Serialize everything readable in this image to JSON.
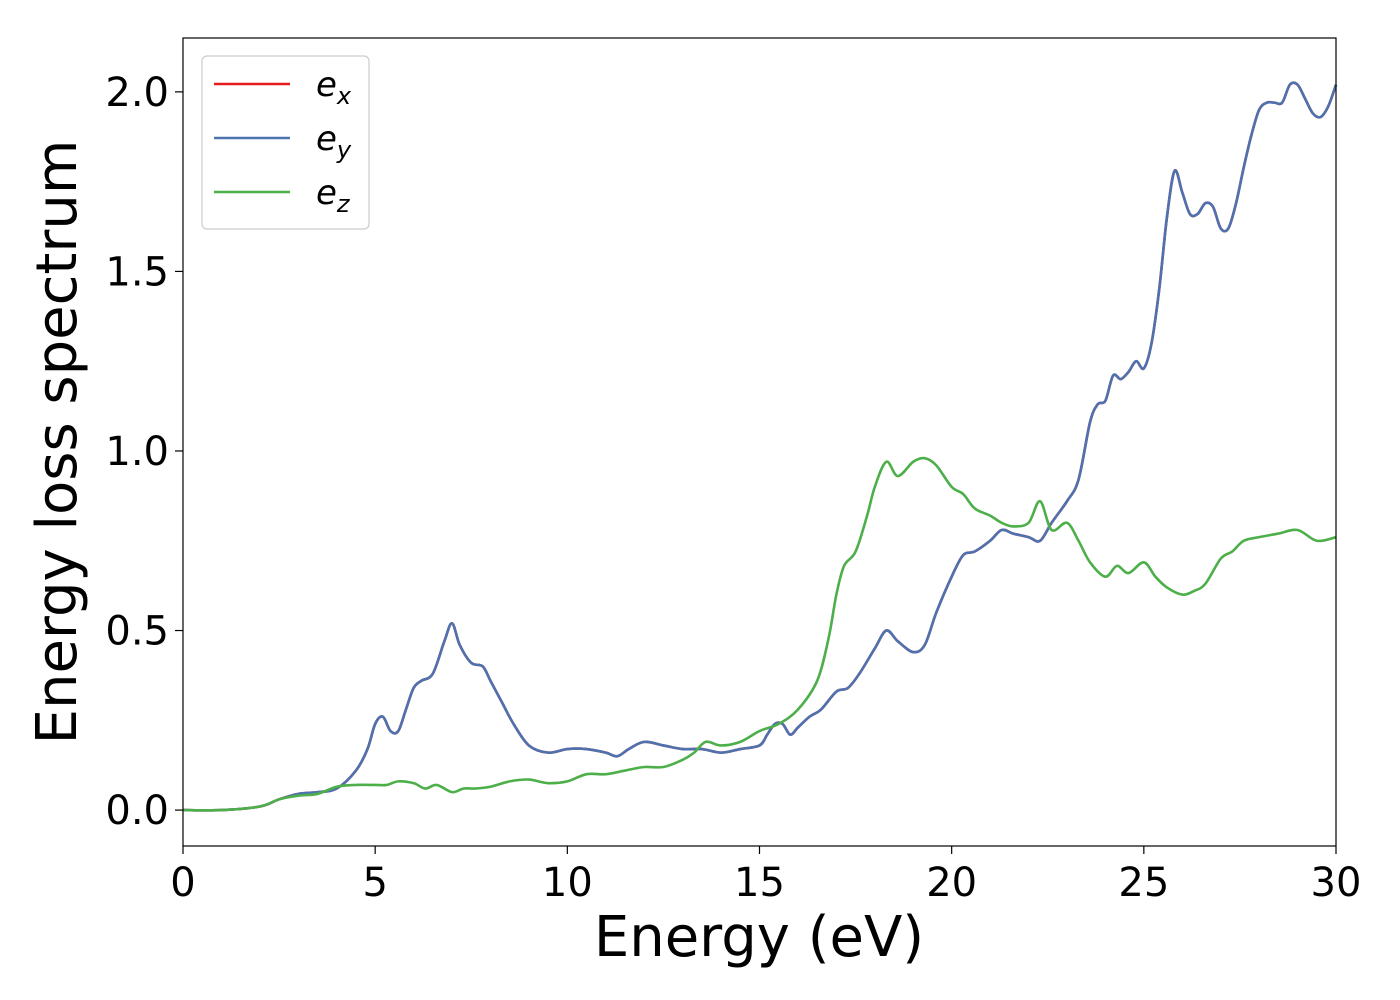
{
  "chart_data": {
    "type": "line",
    "xlabel": "Energy (eV)",
    "ylabel": "Energy loss spectrum",
    "xlim": [
      0,
      30
    ],
    "ylim": [
      -0.1,
      2.15
    ],
    "xticks": [
      0,
      5,
      10,
      15,
      20,
      25,
      30
    ],
    "yticks": [
      0.0,
      0.5,
      1.0,
      1.5,
      2.0
    ],
    "xtick_labels": [
      "0",
      "5",
      "10",
      "15",
      "20",
      "25",
      "30"
    ],
    "ytick_labels": [
      "0.0",
      "0.5",
      "1.0",
      "1.5",
      "2.0"
    ],
    "grid": false,
    "legend_position": "top-left",
    "series": [
      {
        "name": "e_x",
        "legend_base": "e",
        "legend_sub": "x",
        "color": "#e41a1c",
        "x": [
          0,
          1,
          2,
          2.5,
          3,
          3.5,
          4,
          4.5,
          4.8,
          5,
          5.2,
          5.4,
          5.6,
          5.8,
          6,
          6.2,
          6.5,
          6.8,
          7,
          7.2,
          7.5,
          7.8,
          8,
          8.3,
          8.6,
          9,
          9.5,
          10,
          10.5,
          11,
          11.3,
          11.6,
          12,
          12.5,
          13,
          13.5,
          14,
          14.5,
          15,
          15.2,
          15.4,
          15.6,
          15.8,
          16,
          16.3,
          16.6,
          17,
          17.3,
          17.6,
          18,
          18.3,
          18.6,
          19,
          19.3,
          19.6,
          20,
          20.3,
          20.6,
          21,
          21.3,
          21.6,
          22,
          22.3,
          22.6,
          23,
          23.3,
          23.6,
          23.8,
          24,
          24.2,
          24.4,
          24.6,
          24.8,
          25,
          25.2,
          25.4,
          25.6,
          25.8,
          26,
          26.2,
          26.4,
          26.6,
          26.8,
          27,
          27.2,
          27.4,
          27.6,
          27.8,
          28,
          28.2,
          28.4,
          28.6,
          28.8,
          29,
          29.2,
          29.4,
          29.6,
          29.8,
          30
        ],
        "y": [
          0,
          0,
          0.01,
          0.03,
          0.045,
          0.05,
          0.06,
          0.11,
          0.17,
          0.24,
          0.26,
          0.22,
          0.22,
          0.28,
          0.34,
          0.36,
          0.38,
          0.47,
          0.52,
          0.46,
          0.41,
          0.4,
          0.36,
          0.3,
          0.24,
          0.18,
          0.16,
          0.17,
          0.17,
          0.16,
          0.15,
          0.17,
          0.19,
          0.18,
          0.17,
          0.17,
          0.16,
          0.17,
          0.18,
          0.21,
          0.24,
          0.24,
          0.21,
          0.23,
          0.26,
          0.28,
          0.33,
          0.34,
          0.38,
          0.45,
          0.5,
          0.47,
          0.44,
          0.46,
          0.55,
          0.65,
          0.71,
          0.72,
          0.75,
          0.78,
          0.77,
          0.76,
          0.75,
          0.8,
          0.86,
          0.92,
          1.08,
          1.13,
          1.14,
          1.21,
          1.2,
          1.22,
          1.25,
          1.23,
          1.3,
          1.45,
          1.65,
          1.78,
          1.72,
          1.66,
          1.66,
          1.69,
          1.68,
          1.62,
          1.62,
          1.69,
          1.79,
          1.88,
          1.95,
          1.97,
          1.97,
          1.97,
          2.02,
          2.02,
          1.98,
          1.94,
          1.93,
          1.96,
          2.02
        ]
      },
      {
        "name": "e_y",
        "legend_base": "e",
        "legend_sub": "y",
        "color": "#4c72b0",
        "x": [
          0,
          1,
          2,
          2.5,
          3,
          3.5,
          4,
          4.5,
          4.8,
          5,
          5.2,
          5.4,
          5.6,
          5.8,
          6,
          6.2,
          6.5,
          6.8,
          7,
          7.2,
          7.5,
          7.8,
          8,
          8.3,
          8.6,
          9,
          9.5,
          10,
          10.5,
          11,
          11.3,
          11.6,
          12,
          12.5,
          13,
          13.5,
          14,
          14.5,
          15,
          15.2,
          15.4,
          15.6,
          15.8,
          16,
          16.3,
          16.6,
          17,
          17.3,
          17.6,
          18,
          18.3,
          18.6,
          19,
          19.3,
          19.6,
          20,
          20.3,
          20.6,
          21,
          21.3,
          21.6,
          22,
          22.3,
          22.6,
          23,
          23.3,
          23.6,
          23.8,
          24,
          24.2,
          24.4,
          24.6,
          24.8,
          25,
          25.2,
          25.4,
          25.6,
          25.8,
          26,
          26.2,
          26.4,
          26.6,
          26.8,
          27,
          27.2,
          27.4,
          27.6,
          27.8,
          28,
          28.2,
          28.4,
          28.6,
          28.8,
          29,
          29.2,
          29.4,
          29.6,
          29.8,
          30
        ],
        "y": [
          0,
          0,
          0.01,
          0.03,
          0.045,
          0.05,
          0.06,
          0.11,
          0.17,
          0.24,
          0.26,
          0.22,
          0.22,
          0.28,
          0.34,
          0.36,
          0.38,
          0.47,
          0.52,
          0.46,
          0.41,
          0.4,
          0.36,
          0.3,
          0.24,
          0.18,
          0.16,
          0.17,
          0.17,
          0.16,
          0.15,
          0.17,
          0.19,
          0.18,
          0.17,
          0.17,
          0.16,
          0.17,
          0.18,
          0.21,
          0.24,
          0.24,
          0.21,
          0.23,
          0.26,
          0.28,
          0.33,
          0.34,
          0.38,
          0.45,
          0.5,
          0.47,
          0.44,
          0.46,
          0.55,
          0.65,
          0.71,
          0.72,
          0.75,
          0.78,
          0.77,
          0.76,
          0.75,
          0.8,
          0.86,
          0.92,
          1.08,
          1.13,
          1.14,
          1.21,
          1.2,
          1.22,
          1.25,
          1.23,
          1.3,
          1.45,
          1.65,
          1.78,
          1.72,
          1.66,
          1.66,
          1.69,
          1.68,
          1.62,
          1.62,
          1.69,
          1.79,
          1.88,
          1.95,
          1.97,
          1.97,
          1.97,
          2.02,
          2.02,
          1.98,
          1.94,
          1.93,
          1.96,
          2.02
        ]
      },
      {
        "name": "e_z",
        "legend_base": "e",
        "legend_sub": "z",
        "color": "#4daf4a",
        "x": [
          0,
          1,
          2,
          2.5,
          3,
          3.5,
          4,
          4.5,
          5,
          5.3,
          5.6,
          6,
          6.3,
          6.6,
          7,
          7.3,
          7.6,
          8,
          8.5,
          9,
          9.5,
          10,
          10.5,
          11,
          11.5,
          12,
          12.5,
          13,
          13.3,
          13.6,
          14,
          14.5,
          15,
          15.5,
          16,
          16.5,
          16.8,
          17,
          17.2,
          17.5,
          17.8,
          18,
          18.3,
          18.6,
          19,
          19.3,
          19.6,
          20,
          20.3,
          20.6,
          21,
          21.3,
          21.6,
          22,
          22.3,
          22.6,
          23,
          23.3,
          23.6,
          24,
          24.3,
          24.6,
          25,
          25.3,
          25.6,
          26,
          26.3,
          26.6,
          27,
          27.3,
          27.6,
          28,
          28.5,
          29,
          29.5,
          30
        ],
        "y": [
          0,
          0,
          0.01,
          0.03,
          0.04,
          0.045,
          0.065,
          0.07,
          0.07,
          0.07,
          0.08,
          0.075,
          0.06,
          0.07,
          0.05,
          0.06,
          0.06,
          0.065,
          0.08,
          0.085,
          0.075,
          0.08,
          0.1,
          0.1,
          0.11,
          0.12,
          0.12,
          0.14,
          0.16,
          0.19,
          0.18,
          0.19,
          0.22,
          0.24,
          0.28,
          0.36,
          0.48,
          0.6,
          0.68,
          0.72,
          0.82,
          0.9,
          0.97,
          0.93,
          0.97,
          0.98,
          0.96,
          0.9,
          0.88,
          0.84,
          0.82,
          0.8,
          0.79,
          0.8,
          0.86,
          0.78,
          0.8,
          0.75,
          0.69,
          0.65,
          0.68,
          0.66,
          0.69,
          0.65,
          0.62,
          0.6,
          0.61,
          0.63,
          0.7,
          0.72,
          0.75,
          0.76,
          0.77,
          0.78,
          0.75,
          0.76
        ]
      }
    ]
  }
}
